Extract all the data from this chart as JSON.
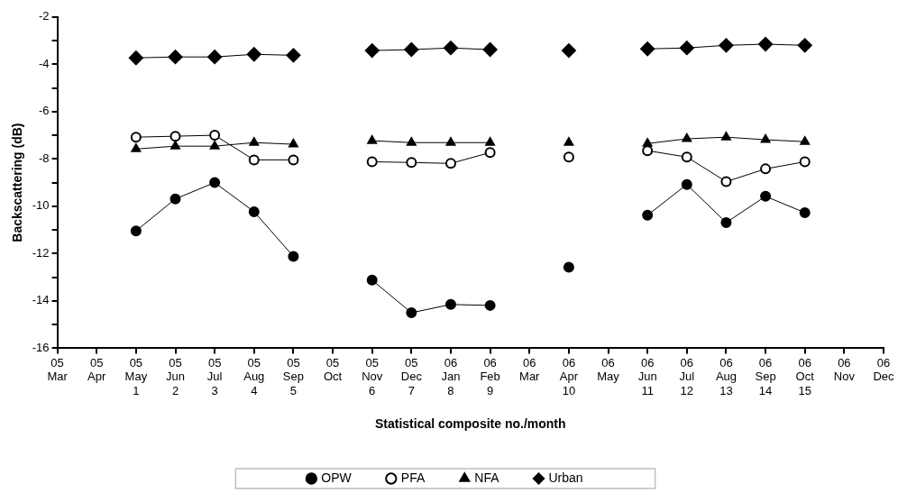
{
  "chart_data": {
    "type": "line",
    "xlabel": "Statistical composite no./month",
    "ylabel": "Backscattering (dB)",
    "categories": [
      "05\nMar",
      "05\nApr",
      "05\nMay\n1",
      "05\nJun\n2",
      "05\nJul\n3",
      "05\nAug\n4",
      "05\nSep\n5",
      "05\nOct",
      "05\nNov\n6",
      "05\nDec\n7",
      "06\nJan\n8",
      "06\nFeb\n9",
      "06\nMar",
      "06\nApr\n10",
      "06\nMay",
      "06\nJun\n11",
      "06\nJul\n12",
      "06\nAug\n13",
      "06\nSep\n14",
      "06\nOct\n15",
      "06\nNov",
      "06\nDec"
    ],
    "series": [
      {
        "name": "OPW",
        "color": "#000000",
        "marker": "circle",
        "values": [
          null,
          null,
          -11.04,
          -9.69,
          -9.0,
          -10.23,
          -12.12,
          null,
          -13.12,
          -14.5,
          -14.15,
          -14.19,
          null,
          -12.58,
          null,
          -10.38,
          -9.08,
          -10.69,
          -9.58,
          -10.27,
          null,
          null
        ]
      },
      {
        "name": "PFA",
        "color": "#000000",
        "marker": "circle",
        "values": [
          null,
          null,
          -7.08,
          -7.04,
          -7.0,
          -8.04,
          -8.04,
          null,
          -8.12,
          -8.15,
          -8.19,
          -7.73,
          null,
          -7.92,
          null,
          -7.65,
          -7.92,
          -8.96,
          -8.42,
          -8.12,
          null,
          null
        ]
      },
      {
        "name": "NFA",
        "color": "#000000",
        "marker": "triangle",
        "values": [
          null,
          null,
          -7.58,
          -7.46,
          -7.46,
          -7.31,
          -7.38,
          null,
          -7.23,
          -7.31,
          -7.31,
          -7.31,
          null,
          -7.31,
          null,
          -7.35,
          -7.15,
          -7.08,
          -7.19,
          -7.27,
          null,
          null
        ]
      },
      {
        "name": "Urban",
        "color": "#000000",
        "marker": "diamond",
        "values": [
          null,
          null,
          -3.73,
          -3.69,
          -3.69,
          -3.58,
          -3.62,
          null,
          -3.42,
          -3.38,
          -3.31,
          -3.38,
          null,
          -3.42,
          null,
          -3.35,
          -3.31,
          -3.2,
          -3.15,
          -3.2,
          null,
          null
        ]
      }
    ],
    "ylim": [
      -16,
      -2
    ],
    "yticks": [
      -16,
      {
        "value": -15,
        "label": null
      },
      -14,
      {
        "value": -13,
        "label": null
      },
      -12,
      {
        "value": -11,
        "label": null
      },
      -10,
      {
        "value": -9,
        "label": null
      },
      -8,
      {
        "value": -7,
        "label": null
      },
      -6,
      {
        "value": -5,
        "label": null
      },
      -4,
      {
        "value": -3,
        "label": null
      },
      -2
    ],
    "grid": false,
    "legend": "bottom",
    "line_style": "solid"
  }
}
